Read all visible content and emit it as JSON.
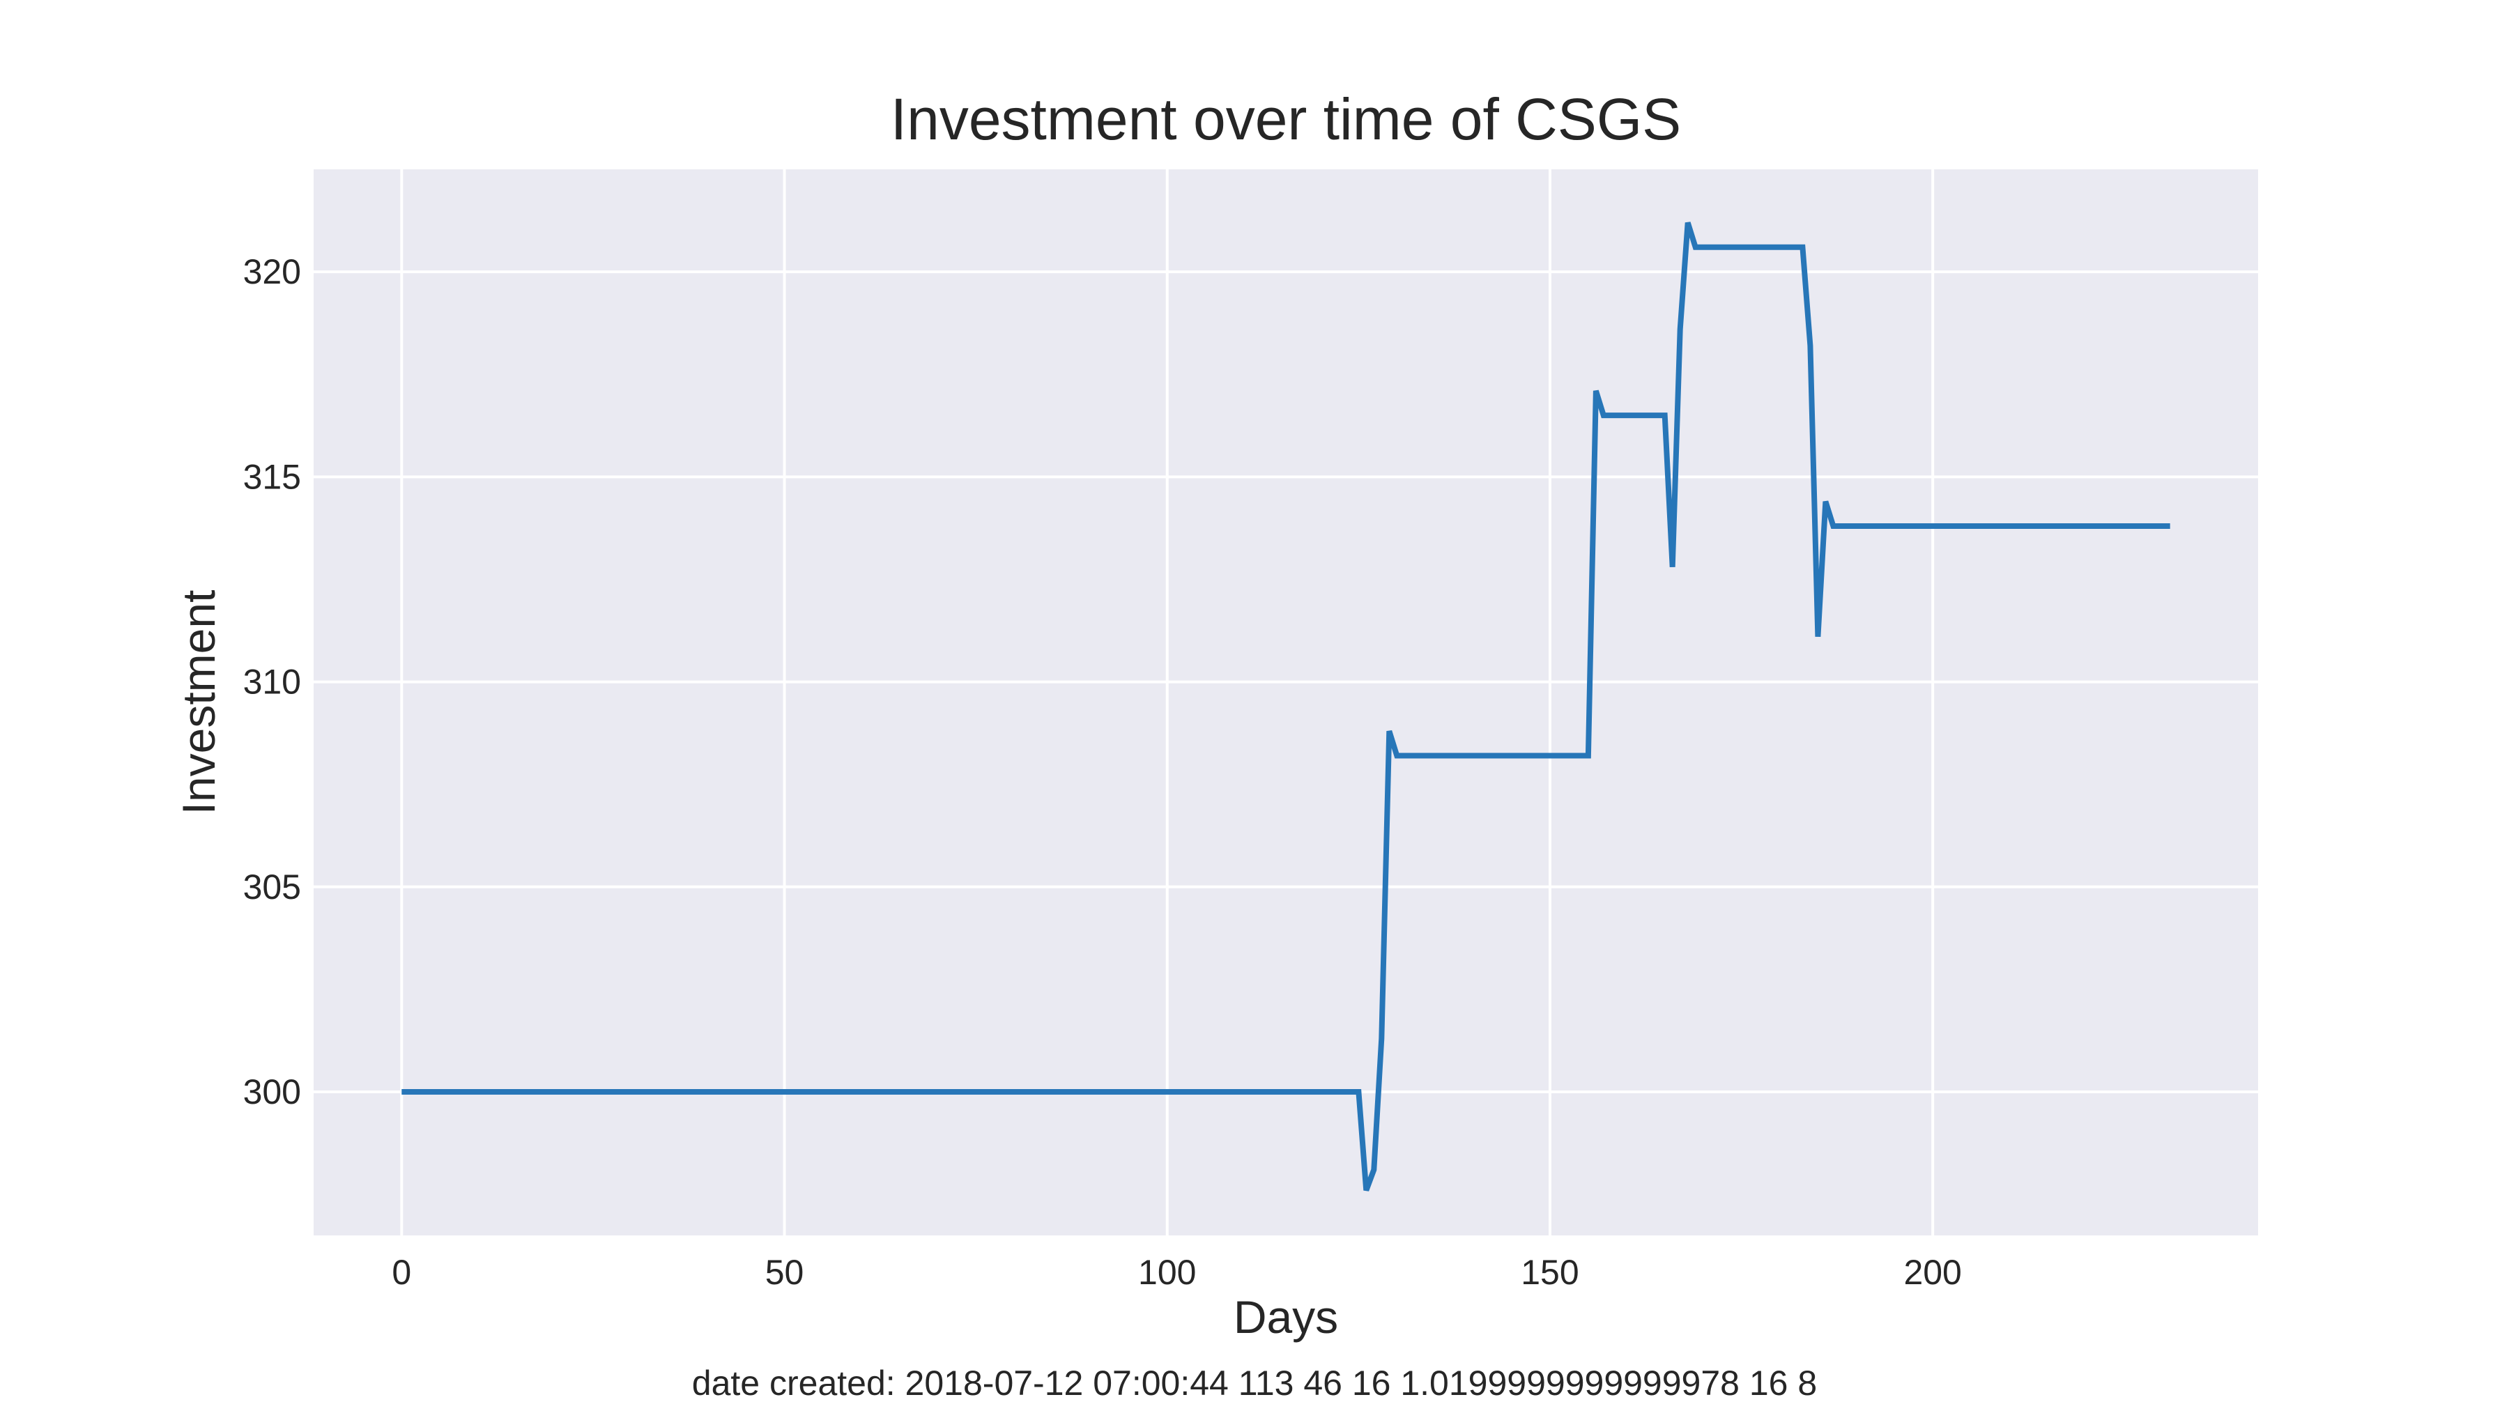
{
  "chart_data": {
    "type": "line",
    "title": "Investment over time of CSGS",
    "xlabel": "Days",
    "ylabel": "Investment",
    "footer": "date created: 2018-07-12 07:00:44 113 46 16 1.0199999999999978 16 8",
    "xlim": [
      -11.5,
      242.5
    ],
    "ylim": [
      296.5,
      322.5
    ],
    "x_ticks": [
      0,
      50,
      100,
      150,
      200
    ],
    "y_ticks": [
      300,
      305,
      310,
      315,
      320
    ],
    "x_tick_labels": [
      "0",
      "50",
      "100",
      "150",
      "200"
    ],
    "y_tick_labels": [
      "300",
      "305",
      "310",
      "315",
      "320"
    ],
    "grid": true,
    "legend": "none",
    "style": {
      "background": "#eaeaf2",
      "grid_color": "#ffffff",
      "line_color": "#2776b8",
      "text_color": "#262626"
    },
    "series": [
      {
        "x": [
          0,
          125,
          126,
          127,
          128,
          129,
          130,
          155,
          156,
          157,
          165,
          166,
          167,
          168,
          169,
          170,
          183,
          184,
          185,
          186,
          187,
          231
        ],
        "y": [
          300.0,
          300.0,
          297.6,
          298.1,
          301.3,
          308.8,
          308.2,
          308.2,
          317.1,
          316.5,
          316.5,
          312.8,
          318.6,
          321.2,
          320.6,
          320.6,
          320.6,
          318.2,
          311.1,
          314.4,
          313.8,
          313.8
        ]
      }
    ]
  }
}
